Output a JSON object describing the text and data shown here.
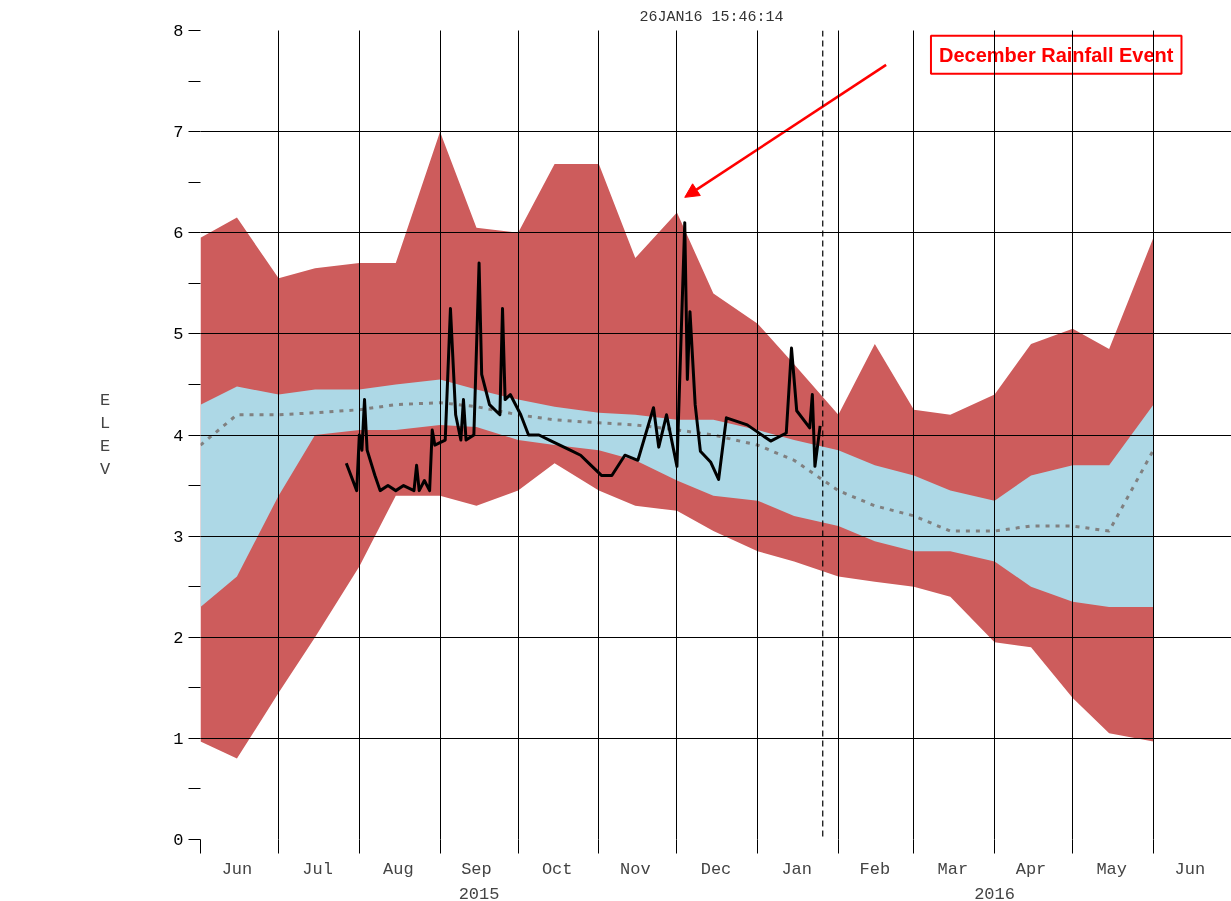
{
  "chart_data": {
    "type": "line",
    "ylabel": "ELEV",
    "annotations": [
      "26JAN16  15:46:14",
      "December Rainfall Event",
      "2015",
      "2016"
    ],
    "xlim": [
      "2015-06-01",
      "2016-07-01"
    ],
    "xticks": [
      {
        "value": "2015-06-01",
        "label": null
      },
      {
        "value": "2015-07-01",
        "label": null
      },
      {
        "value": "2015-08-01",
        "label": null
      },
      {
        "value": "2015-09-01",
        "label": null
      },
      {
        "value": "2015-10-01",
        "label": null
      },
      {
        "value": "2015-11-01",
        "label": null
      },
      {
        "value": "2015-12-01",
        "label": null
      },
      {
        "value": "2016-01-01",
        "label": null
      },
      {
        "value": "2016-02-01",
        "label": null
      },
      {
        "value": "2016-03-01",
        "label": null
      },
      {
        "value": "2016-04-01",
        "label": null
      },
      {
        "value": "2016-05-01",
        "label": null
      },
      {
        "value": "2016-06-01",
        "label": null
      },
      {
        "value": "2015-06-15",
        "label": "Jun"
      },
      {
        "value": "2015-07-16",
        "label": "Jul"
      },
      {
        "value": "2015-08-16",
        "label": "Aug"
      },
      {
        "value": "2015-09-15",
        "label": "Sep"
      },
      {
        "value": "2015-10-16",
        "label": "Oct"
      },
      {
        "value": "2015-11-15",
        "label": "Nov"
      },
      {
        "value": "2015-12-16",
        "label": "Dec"
      },
      {
        "value": "2016-01-16",
        "label": "Jan"
      },
      {
        "value": "2016-02-15",
        "label": "Feb"
      },
      {
        "value": "2016-03-16",
        "label": "Mar"
      },
      {
        "value": "2016-04-15",
        "label": "Apr"
      },
      {
        "value": "2016-05-16",
        "label": "May"
      },
      {
        "value": "2016-06-15",
        "label": "Jun"
      }
    ],
    "ylim": [
      0,
      8
    ],
    "yticks": [
      0,
      {
        "value": 0.5,
        "label": null
      },
      1,
      {
        "value": 1.5,
        "label": null
      },
      2,
      {
        "value": 2.5,
        "label": null
      },
      3,
      {
        "value": 3.5,
        "label": null
      },
      4,
      {
        "value": 4.5,
        "label": null
      },
      5,
      {
        "value": 5.5,
        "label": null
      },
      6,
      {
        "value": 6.5,
        "label": null
      },
      7,
      {
        "value": 7.5,
        "label": null
      },
      8
    ],
    "grid": true,
    "ref_lines": [
      {
        "axis": "x",
        "value": "2016-01-26",
        "label": null,
        "color": "#000000",
        "line_style": "dashed"
      }
    ],
    "series": [
      {
        "type": "line",
        "color": "#cd5c5c",
        "values": [
          null,
          null,
          null,
          null,
          null,
          null,
          null,
          null,
          null,
          null,
          null,
          null,
          null,
          null,
          null,
          null,
          null,
          null,
          null,
          null,
          null,
          null,
          null,
          null,
          null
        ],
        "x": [
          "2015-06-01",
          "2015-06-15",
          "2015-07-01",
          "2015-07-15",
          "2015-08-01",
          "2015-08-15",
          "2015-09-01",
          "2015-09-15",
          "2015-10-01",
          "2015-10-15",
          "2015-11-01",
          "2015-11-15",
          "2015-12-01",
          "2015-12-15",
          "2016-01-01",
          "2016-01-15",
          "2016-02-01",
          "2016-02-15",
          "2016-03-01",
          "2016-03-15",
          "2016-04-01",
          "2016-04-15",
          "2016-05-01",
          "2016-05-15",
          "2016-06-01"
        ],
        "lower": [
          0.97,
          0.8,
          1.45,
          2.0,
          2.7,
          3.4,
          3.4,
          3.3,
          3.45,
          3.72,
          3.45,
          3.3,
          3.25,
          3.05,
          2.85,
          2.75,
          2.6,
          2.55,
          2.5,
          2.4,
          1.95,
          1.9,
          1.4,
          1.05,
          0.97
        ],
        "upper": [
          5.95,
          6.15,
          5.55,
          5.65,
          5.7,
          5.7,
          7.0,
          6.05,
          6.0,
          6.68,
          6.68,
          5.75,
          6.2,
          5.4,
          5.1,
          4.7,
          4.2,
          4.9,
          4.25,
          4.2,
          4.4,
          4.9,
          5.05,
          4.85,
          5.95
        ]
      },
      {
        "type": "line",
        "color": "#add8e6",
        "values": [
          null,
          null,
          null,
          null,
          null,
          null,
          null,
          null,
          null,
          null,
          null,
          null,
          null,
          null,
          null,
          null,
          null,
          null,
          null,
          null,
          null,
          null,
          null,
          null,
          null
        ],
        "x": [
          "2015-06-01",
          "2015-06-15",
          "2015-07-01",
          "2015-07-15",
          "2015-08-01",
          "2015-08-15",
          "2015-09-01",
          "2015-09-15",
          "2015-10-01",
          "2015-10-15",
          "2015-11-01",
          "2015-11-15",
          "2015-12-01",
          "2015-12-15",
          "2016-01-01",
          "2016-01-15",
          "2016-02-01",
          "2016-02-15",
          "2016-03-01",
          "2016-03-15",
          "2016-04-01",
          "2016-04-15",
          "2016-05-01",
          "2016-05-15",
          "2016-06-01"
        ],
        "lower": [
          2.3,
          2.6,
          3.4,
          4.0,
          4.05,
          4.05,
          4.1,
          4.08,
          3.95,
          3.9,
          3.85,
          3.75,
          3.55,
          3.4,
          3.35,
          3.2,
          3.1,
          2.95,
          2.85,
          2.85,
          2.75,
          2.5,
          2.35,
          2.3,
          2.3
        ],
        "upper": [
          4.3,
          4.48,
          4.4,
          4.45,
          4.45,
          4.5,
          4.55,
          4.45,
          4.35,
          4.28,
          4.22,
          4.2,
          4.15,
          4.15,
          4.05,
          3.95,
          3.85,
          3.7,
          3.6,
          3.45,
          3.35,
          3.6,
          3.7,
          3.7,
          4.3
        ]
      },
      {
        "type": "line",
        "color": "#808080",
        "line_style": "dotted",
        "x": [
          "2015-06-01",
          "2015-06-15",
          "2015-07-01",
          "2015-07-15",
          "2015-08-01",
          "2015-08-15",
          "2015-09-01",
          "2015-09-15",
          "2015-10-01",
          "2015-10-15",
          "2015-11-01",
          "2015-11-15",
          "2015-12-01",
          "2015-12-15",
          "2016-01-01",
          "2016-01-15",
          "2016-02-01",
          "2016-02-15",
          "2016-03-01",
          "2016-03-15",
          "2016-04-01",
          "2016-04-15",
          "2016-05-01",
          "2016-05-15",
          "2016-06-01"
        ],
        "values": [
          3.9,
          4.2,
          4.2,
          4.22,
          4.25,
          4.3,
          4.32,
          4.28,
          4.2,
          4.15,
          4.12,
          4.1,
          4.05,
          4.0,
          3.9,
          3.75,
          3.45,
          3.3,
          3.2,
          3.05,
          3.05,
          3.1,
          3.1,
          3.05,
          3.85
        ]
      },
      {
        "color": "#000000",
        "line_style": "solid",
        "x": [
          "2015-07-27",
          "2015-07-31",
          "2015-08-01",
          "2015-08-02",
          "2015-08-03",
          "2015-08-04",
          "2015-08-07",
          "2015-08-09",
          "2015-08-12",
          "2015-08-15",
          "2015-08-18",
          "2015-08-22",
          "2015-08-23",
          "2015-08-24",
          "2015-08-26",
          "2015-08-28",
          "2015-08-29",
          "2015-08-30",
          "2015-09-03",
          "2015-09-05",
          "2015-09-07",
          "2015-09-09",
          "2015-09-10",
          "2015-09-11",
          "2015-09-14",
          "2015-09-16",
          "2015-09-17",
          "2015-09-20",
          "2015-09-24",
          "2015-09-25",
          "2015-09-26",
          "2015-09-28",
          "2015-10-02",
          "2015-10-05",
          "2015-10-09",
          "2015-10-13",
          "2015-10-17",
          "2015-10-21",
          "2015-10-25",
          "2015-10-29",
          "2015-11-02",
          "2015-11-06",
          "2015-11-11",
          "2015-11-16",
          "2015-11-22",
          "2015-11-24",
          "2015-11-27",
          "2015-12-01",
          "2015-12-04",
          "2015-12-05",
          "2015-12-06",
          "2015-12-08",
          "2015-12-10",
          "2015-12-14",
          "2015-12-17",
          "2015-12-20",
          "2015-12-28",
          "2016-01-06",
          "2016-01-12",
          "2016-01-14",
          "2016-01-16",
          "2016-01-21",
          "2016-01-22",
          "2016-01-23",
          "2016-01-25"
        ],
        "values": [
          3.72,
          3.45,
          4.0,
          3.85,
          4.35,
          3.85,
          3.6,
          3.45,
          3.5,
          3.45,
          3.5,
          3.45,
          3.7,
          3.45,
          3.55,
          3.45,
          4.05,
          3.9,
          3.95,
          5.25,
          4.2,
          3.95,
          4.35,
          3.95,
          4.0,
          5.7,
          4.6,
          4.3,
          4.2,
          5.25,
          4.35,
          4.4,
          4.2,
          4.0,
          4.0,
          3.95,
          3.9,
          3.85,
          3.8,
          3.7,
          3.6,
          3.6,
          3.8,
          3.75,
          4.27,
          3.88,
          4.2,
          3.69,
          6.1,
          4.55,
          5.22,
          4.3,
          3.84,
          3.73,
          3.56,
          4.17,
          4.1,
          3.94,
          4.02,
          4.86,
          4.24,
          4.07,
          4.4,
          3.69,
          4.09
        ]
      }
    ]
  }
}
